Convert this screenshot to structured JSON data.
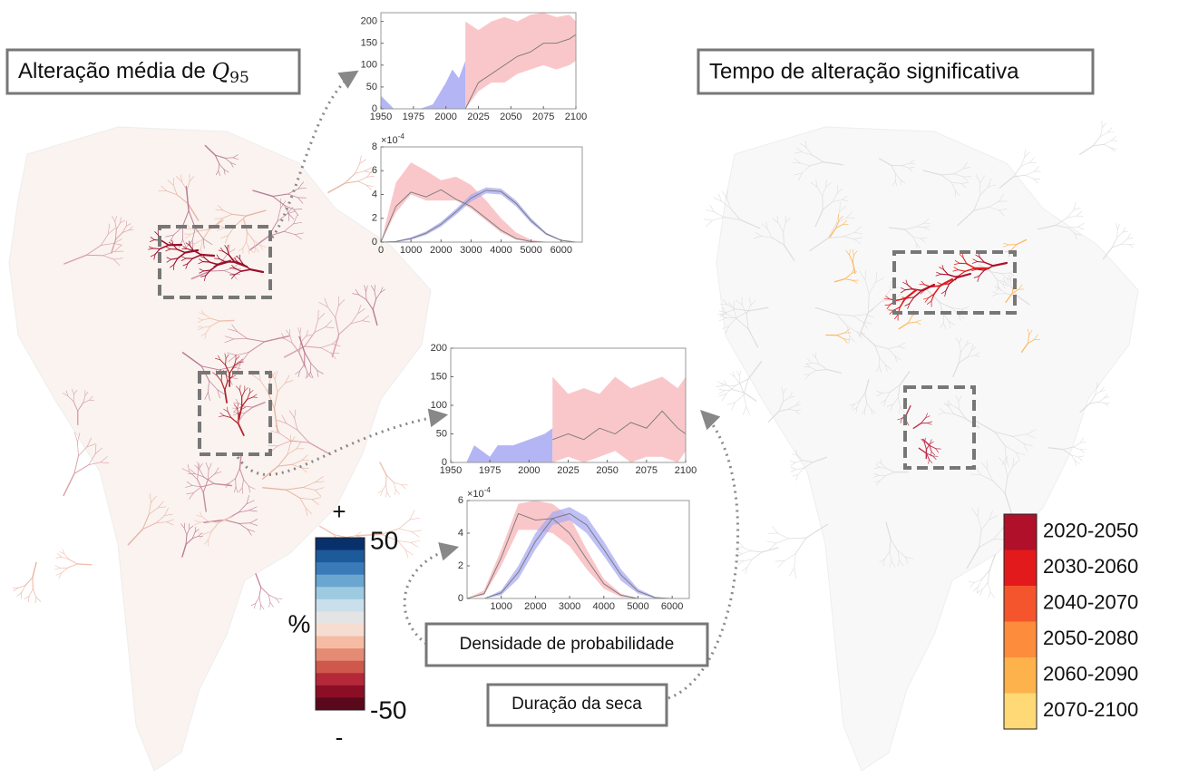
{
  "title_left": {
    "text": "Alteração média de",
    "symbol": "Q",
    "subscript": "95"
  },
  "title_right": "Tempo de alteração significativa",
  "colorbar": {
    "plus": "+",
    "minus": "-",
    "max": 50,
    "min": -50,
    "unit": "%",
    "colors": [
      "#08306b",
      "#1c5a9a",
      "#3a7ab8",
      "#6aa6d0",
      "#9ecae1",
      "#c9dfec",
      "#e4e4e4",
      "#f6ddd2",
      "#f6bca3",
      "#e58b73",
      "#cf584c",
      "#b4283a",
      "#8b0e26",
      "#5a081c"
    ]
  },
  "legend": [
    {
      "label": "2020-2050",
      "color": "#b0102a"
    },
    {
      "label": "2030-2060",
      "color": "#e31a1c"
    },
    {
      "label": "2040-2070",
      "color": "#f4552c"
    },
    {
      "label": "2050-2080",
      "color": "#fd8d3c"
    },
    {
      "label": "2060-2090",
      "color": "#feb24c"
    },
    {
      "label": "2070-2100",
      "color": "#fed976"
    }
  ],
  "callouts": {
    "density": "Densidade de probabilidade",
    "duration": "Duração da seca"
  },
  "plots": [
    {
      "xlim": [
        1950,
        2100
      ],
      "ylim": [
        0,
        220
      ],
      "xticks": [
        1950,
        1975,
        2000,
        2025,
        2050,
        2075,
        2100
      ],
      "yticks": [
        0,
        50,
        100,
        150,
        200
      ],
      "bands": [
        {
          "color": "#9a9cf0",
          "x": [
            1950,
            1960,
            1970,
            1980,
            1990,
            2000,
            2005,
            2010,
            2015
          ],
          "lower": [
            0,
            0,
            0,
            0,
            0,
            0,
            0,
            0,
            0
          ],
          "upper": [
            30,
            0,
            0,
            0,
            10,
            60,
            90,
            70,
            110
          ]
        },
        {
          "color": "#f7b4b8",
          "x": [
            2015,
            2025,
            2035,
            2045,
            2055,
            2065,
            2075,
            2085,
            2095,
            2100
          ],
          "lower": [
            0,
            40,
            60,
            60,
            80,
            90,
            100,
            90,
            100,
            110
          ],
          "upper": [
            200,
            180,
            200,
            210,
            200,
            215,
            220,
            210,
            215,
            200
          ]
        }
      ],
      "lines": [
        {
          "color": "#777777",
          "x": [
            2015,
            2025,
            2035,
            2045,
            2055,
            2065,
            2075,
            2085,
            2095,
            2100
          ],
          "values": [
            0,
            60,
            80,
            100,
            120,
            130,
            150,
            150,
            160,
            170
          ]
        }
      ]
    },
    {
      "xlim": [
        0,
        6700
      ],
      "ylim": [
        0,
        8
      ],
      "xticks": [
        0,
        1000,
        2000,
        3000,
        4000,
        5000,
        6000
      ],
      "yticks": [
        0,
        2,
        4,
        6,
        8
      ],
      "exponent": {
        "base": "×10",
        "power": "-4"
      },
      "bands": [
        {
          "color": "#f7b4b8",
          "x": [
            0,
            500,
            1000,
            1500,
            2000,
            2500,
            3000,
            3500,
            4000,
            4500,
            5000,
            5500,
            6000,
            6500
          ],
          "lower": [
            0,
            2.5,
            4,
            3.5,
            3.5,
            3.5,
            2.8,
            1.8,
            0.8,
            0.2,
            0,
            0,
            0,
            0
          ],
          "upper": [
            0,
            5,
            6.7,
            6,
            5.2,
            5.5,
            4.8,
            3.5,
            2,
            0.8,
            0.2,
            0,
            0,
            0
          ]
        },
        {
          "color": "#a9abf2",
          "x": [
            0,
            500,
            1000,
            1500,
            2000,
            2500,
            3000,
            3500,
            4000,
            4500,
            5000,
            5500,
            6000,
            6500
          ],
          "lower": [
            0,
            0,
            0.2,
            0.6,
            1.3,
            2.3,
            3.4,
            4.1,
            4,
            3,
            1.6,
            0.6,
            0.1,
            0
          ],
          "upper": [
            0,
            0.1,
            0.4,
            0.9,
            1.7,
            2.8,
            4,
            4.6,
            4.5,
            3.5,
            2,
            0.8,
            0.2,
            0
          ]
        }
      ],
      "lines": [
        {
          "color": "#777777",
          "x": [
            0,
            500,
            1000,
            1500,
            2000,
            2500,
            3000,
            3500,
            4000,
            4500,
            5000,
            5500,
            6000,
            6500
          ],
          "values": [
            0,
            3,
            4.2,
            3.8,
            4.4,
            3.6,
            3,
            2,
            1,
            0.3,
            0.05,
            0,
            0,
            0
          ]
        },
        {
          "color": "#777777",
          "x": [
            0,
            500,
            1000,
            1500,
            2000,
            2500,
            3000,
            3500,
            4000,
            4500,
            5000,
            5500,
            6000,
            6500
          ],
          "values": [
            0,
            0.05,
            0.3,
            0.75,
            1.5,
            2.55,
            3.7,
            4.35,
            4.25,
            3.25,
            1.8,
            0.7,
            0.15,
            0
          ]
        }
      ]
    },
    {
      "xlim": [
        1950,
        2100
      ],
      "ylim": [
        0,
        200
      ],
      "xticks": [
        1950,
        1975,
        2000,
        2025,
        2050,
        2075,
        2100
      ],
      "yticks": [
        0,
        50,
        100,
        150,
        200
      ],
      "bands": [
        {
          "color": "#9a9cf0",
          "x": [
            1950,
            1960,
            1965,
            1970,
            1975,
            1980,
            1990,
            2000,
            2010,
            2015
          ],
          "lower": [
            0,
            0,
            0,
            0,
            0,
            0,
            0,
            0,
            0,
            0
          ],
          "upper": [
            0,
            0,
            30,
            20,
            10,
            30,
            30,
            40,
            50,
            60
          ]
        },
        {
          "color": "#f7b4b8",
          "x": [
            2015,
            2025,
            2035,
            2045,
            2055,
            2065,
            2075,
            2085,
            2095,
            2100
          ],
          "lower": [
            0,
            10,
            0,
            10,
            20,
            0,
            10,
            10,
            0,
            20
          ],
          "upper": [
            150,
            120,
            130,
            120,
            150,
            130,
            140,
            150,
            130,
            150
          ]
        }
      ],
      "lines": [
        {
          "color": "#777777",
          "x": [
            2015,
            2025,
            2035,
            2045,
            2055,
            2065,
            2075,
            2085,
            2095,
            2100
          ],
          "values": [
            40,
            50,
            40,
            60,
            50,
            70,
            60,
            90,
            60,
            50
          ]
        }
      ]
    },
    {
      "xlim": [
        0,
        6500
      ],
      "ylim": [
        0,
        6
      ],
      "xticks": [
        1000,
        2000,
        3000,
        4000,
        5000,
        6000
      ],
      "yticks": [
        0,
        2,
        4,
        6
      ],
      "exponent": {
        "base": "×10",
        "power": "-4"
      },
      "bands": [
        {
          "color": "#f7b4b8",
          "x": [
            0,
            500,
            1000,
            1500,
            2000,
            2500,
            3000,
            3500,
            4000,
            4500,
            5000,
            5500,
            6000,
            6500
          ],
          "lower": [
            0,
            0.2,
            2,
            4.2,
            4.2,
            4,
            3.2,
            1.8,
            0.6,
            0.1,
            0,
            0,
            0,
            0
          ],
          "upper": [
            0,
            0.5,
            3,
            5.8,
            6,
            5.8,
            5,
            3,
            1.2,
            0.3,
            0,
            0,
            0,
            0
          ]
        },
        {
          "color": "#a9abf2",
          "x": [
            0,
            500,
            1000,
            1500,
            2000,
            2500,
            3000,
            3500,
            4000,
            4500,
            5000,
            5500,
            6000,
            6500
          ],
          "lower": [
            0,
            0,
            0.2,
            1.2,
            3,
            4.5,
            4.8,
            4,
            2.6,
            1.1,
            0.3,
            0,
            0,
            0
          ],
          "upper": [
            0,
            0,
            0.5,
            2,
            4,
            5.3,
            5.6,
            5,
            3.5,
            1.8,
            0.6,
            0.1,
            0,
            0
          ]
        }
      ],
      "lines": [
        {
          "color": "#777777",
          "x": [
            0,
            500,
            1000,
            1500,
            2000,
            2500,
            3000,
            3500,
            4000,
            4500,
            5000,
            5500,
            6000,
            6500
          ],
          "values": [
            0,
            0.3,
            2.5,
            5.2,
            4.8,
            4.9,
            4,
            2.4,
            0.9,
            0.2,
            0,
            0,
            0,
            0
          ]
        },
        {
          "color": "#777777",
          "x": [
            0,
            500,
            1000,
            1500,
            2000,
            2500,
            3000,
            3500,
            4000,
            4500,
            5000,
            5500,
            6000,
            6500
          ],
          "values": [
            0,
            0,
            0.35,
            1.6,
            3.5,
            4.9,
            5.2,
            4.5,
            3,
            1.45,
            0.45,
            0.05,
            0,
            0
          ]
        }
      ]
    }
  ]
}
